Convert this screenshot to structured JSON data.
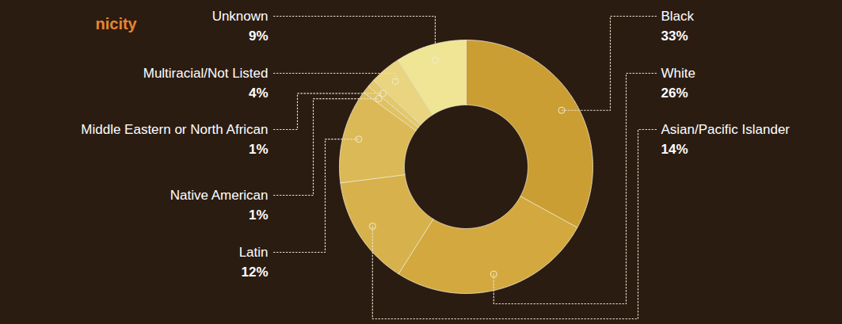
{
  "chart_data": {
    "type": "pie",
    "title": "nicity",
    "categories": [
      "Black",
      "White",
      "Asian/Pacific Islander",
      "Latin",
      "Native American",
      "Middle Eastern or North African",
      "Multiracial/Not Listed",
      "Unknown"
    ],
    "values": [
      33,
      26,
      14,
      12,
      1,
      1,
      4,
      9
    ],
    "value_labels": [
      "33%",
      "26%",
      "14%",
      "12%",
      "1%",
      "1%",
      "4%",
      "9%"
    ],
    "colors": [
      "#cb9e34",
      "#d3a93f",
      "#d7b24c",
      "#dbb957",
      "#e0c263",
      "#e3c86d",
      "#e9d47f",
      "#efe594"
    ],
    "data_labels": true
  }
}
